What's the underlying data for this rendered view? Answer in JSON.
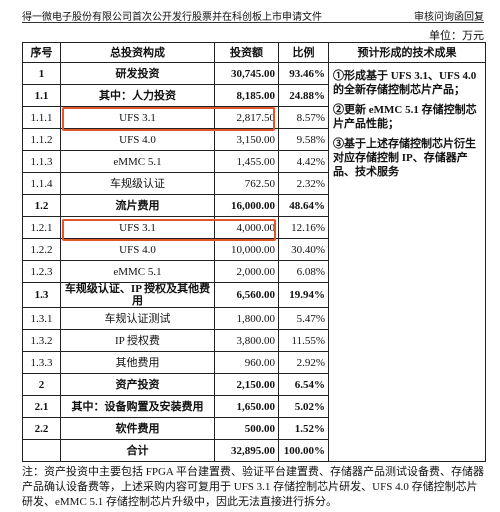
{
  "header": {
    "left": "得一微电子股份有限公司首次公开发行股票并在科创板上市申请文件",
    "right": "审核问询函回复"
  },
  "unit": "单位：万元",
  "table": {
    "columns": [
      "序号",
      "总投资构成",
      "投资额",
      "比例",
      "预计形成的技术成果"
    ],
    "rows": [
      [
        "1",
        "研发投资",
        "30,745.00",
        "93.46%"
      ],
      [
        "1.1",
        "其中：人力投资",
        "8,185.00",
        "24.88%"
      ],
      [
        "1.1.1",
        "UFS 3.1",
        "2,817.50",
        "8.57%"
      ],
      [
        "1.1.2",
        "UFS 4.0",
        "3,150.00",
        "9.58%"
      ],
      [
        "1.1.3",
        "eMMC 5.1",
        "1,455.00",
        "4.42%"
      ],
      [
        "1.1.4",
        "车规级认证",
        "762.50",
        "2.32%"
      ],
      [
        "1.2",
        "流片费用",
        "16,000.00",
        "48.64%"
      ],
      [
        "1.2.1",
        "UFS 3.1",
        "4,000.00",
        "12.16%"
      ],
      [
        "1.2.2",
        "UFS 4.0",
        "10,000.00",
        "30.40%"
      ],
      [
        "1.2.3",
        "eMMC 5.1",
        "2,000.00",
        "6.08%"
      ],
      [
        "1.3",
        "车规级认证、IP 授权及其他费用",
        "6,560.00",
        "19.94%"
      ],
      [
        "1.3.1",
        "车规认证测试",
        "1,800.00",
        "5.47%"
      ],
      [
        "1.3.2",
        "IP 授权费",
        "3,800.00",
        "11.55%"
      ],
      [
        "1.3.3",
        "其他费用",
        "960.00",
        "2.92%"
      ],
      [
        "2",
        "资产投资",
        "2,150.00",
        "6.54%"
      ],
      [
        "2.1",
        "其中：设备购置及安装费用",
        "1,650.00",
        "5.02%"
      ],
      [
        "2.2",
        "软件费用",
        "500.00",
        "1.52%"
      ]
    ],
    "total": {
      "label": "合计",
      "amount": "32,895.00",
      "ratio": "100.00%"
    },
    "results": [
      "①形成基于 UFS 3.1、UFS 4.0 的全新存储控制芯片产品；",
      "②更新 eMMC 5.1 存储控制芯片产品性能；",
      "③基于上述存储控制芯片衍生对应存储控制 IP、存储器产品、技术服务"
    ]
  },
  "footnote": "注：资产投资中主要包括 FPGA 平台建置费、验证平台建置费、存储器产品测试设备费、存储器产品确认设备费等，上述采购内容可复用于 UFS 3.1 存储控制芯片研发、UFS 4.0 存储控制芯片研发、eMMC 5.1 存储控制芯片升级中，因此无法直接进行拆分。"
}
